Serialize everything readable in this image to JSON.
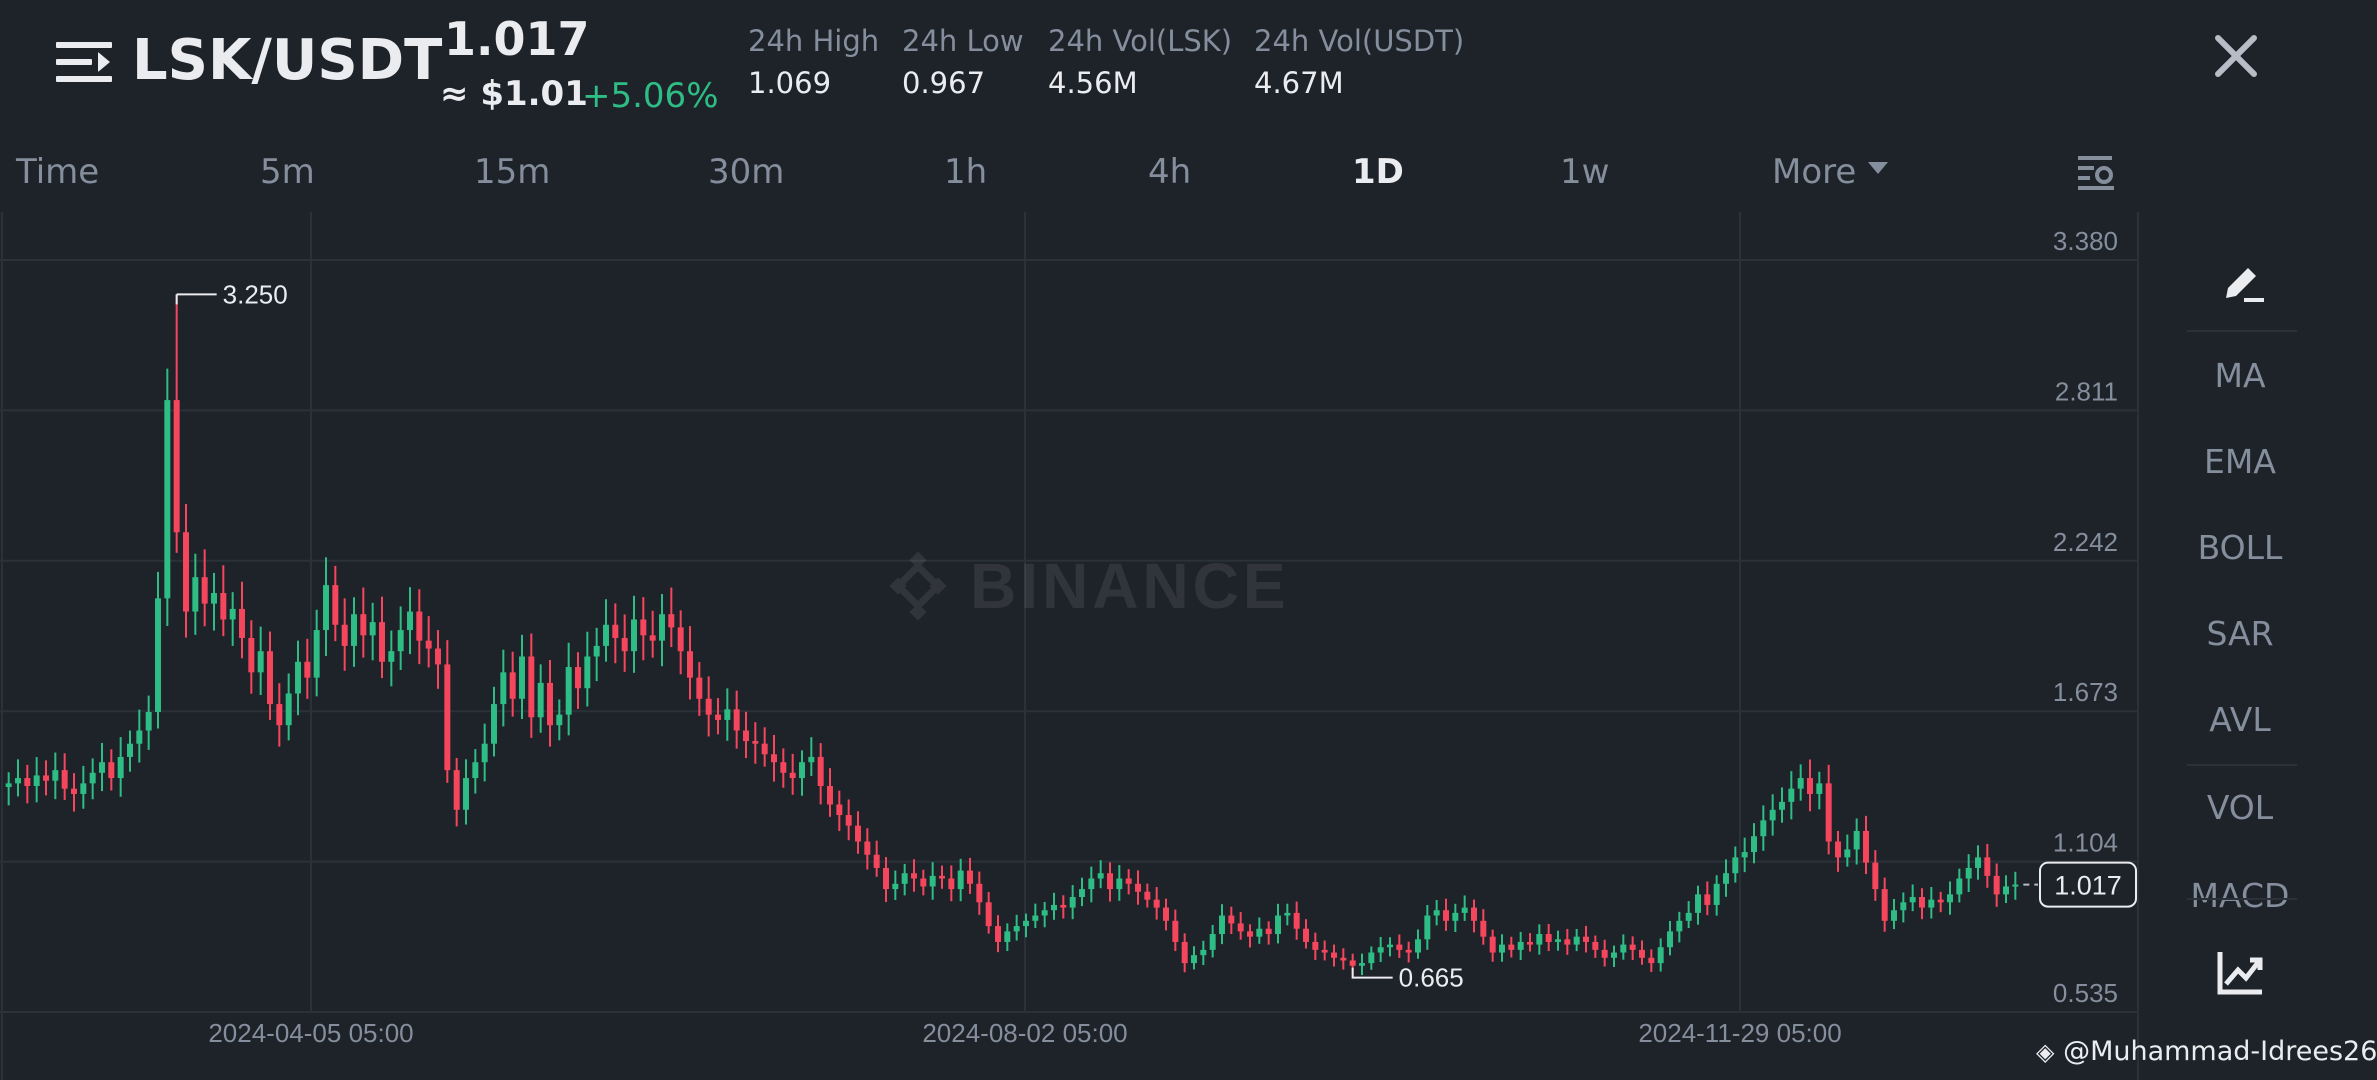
{
  "header": {
    "pair": "LSK/USDT",
    "last_price": "1.017",
    "usd_price": "≈ $1.01",
    "change_pct": "+5.06%",
    "stats": [
      {
        "label": "24h High",
        "value": "1.069"
      },
      {
        "label": "24h Low",
        "value": "0.967"
      },
      {
        "label": "24h Vol(LSK)",
        "value": "4.56M"
      },
      {
        "label": "24h Vol(USDT)",
        "value": "4.67M"
      }
    ],
    "close_icon": "close-icon",
    "menu_icon": "menu-icon"
  },
  "tabs": [
    "Time",
    "5m",
    "15m",
    "30m",
    "1h",
    "4h",
    "1D",
    "1w",
    "More"
  ],
  "active_tab": "1D",
  "indicators": [
    "MA",
    "EMA",
    "BOLL",
    "SAR",
    "AVL",
    "VOL",
    "MACD"
  ],
  "colors": {
    "up": "#2ebd85",
    "down": "#f6465d",
    "bg": "#1e2329",
    "grid": "#2b3139",
    "text_dim": "#848e9c"
  },
  "watermark": "BINANCE",
  "credit": "@Muhammad-Idrees26",
  "chart_data": {
    "type": "candlestick",
    "y_ticks": [
      "3.380",
      "2.811",
      "2.242",
      "1.673",
      "1.104",
      "0.535"
    ],
    "ylim": [
      0.535,
      3.38
    ],
    "x_ticks": [
      "2024-04-05 05:00",
      "2024-08-02 05:00",
      "2024-11-29 05:00"
    ],
    "high_marker": "3.250",
    "low_marker": "0.665",
    "current_price": "1.017",
    "close": [
      1.4,
      1.42,
      1.39,
      1.43,
      1.41,
      1.45,
      1.38,
      1.36,
      1.4,
      1.44,
      1.48,
      1.42,
      1.5,
      1.55,
      1.6,
      1.67,
      2.1,
      2.85,
      2.35,
      2.05,
      2.18,
      2.08,
      2.12,
      2.02,
      2.06,
      1.95,
      1.82,
      1.9,
      1.7,
      1.62,
      1.74,
      1.86,
      1.8,
      1.98,
      2.15,
      2.0,
      1.92,
      2.04,
      1.96,
      2.01,
      1.86,
      1.9,
      1.98,
      2.05,
      1.94,
      1.91,
      1.85,
      1.45,
      1.3,
      1.42,
      1.48,
      1.55,
      1.7,
      1.82,
      1.72,
      1.88,
      1.65,
      1.78,
      1.62,
      1.66,
      1.84,
      1.76,
      1.88,
      1.92,
      2.0,
      1.95,
      1.9,
      2.02,
      1.96,
      1.94,
      2.04,
      1.99,
      1.9,
      1.8,
      1.72,
      1.66,
      1.64,
      1.68,
      1.6,
      1.56,
      1.55,
      1.51,
      1.48,
      1.44,
      1.42,
      1.48,
      1.5,
      1.39,
      1.32,
      1.28,
      1.24,
      1.18,
      1.13,
      1.08,
      1.0,
      1.02,
      1.06,
      1.04,
      1.01,
      1.05,
      1.04,
      1.0,
      1.07,
      1.02,
      0.95,
      0.86,
      0.8,
      0.84,
      0.86,
      0.88,
      0.9,
      0.92,
      0.94,
      0.93,
      0.97,
      1.0,
      1.04,
      1.06,
      1.0,
      1.04,
      1.02,
      0.99,
      0.96,
      0.93,
      0.88,
      0.8,
      0.72,
      0.75,
      0.77,
      0.83,
      0.9,
      0.87,
      0.84,
      0.82,
      0.85,
      0.83,
      0.9,
      0.91,
      0.85,
      0.8,
      0.77,
      0.76,
      0.74,
      0.73,
      0.71,
      0.72,
      0.76,
      0.78,
      0.79,
      0.77,
      0.76,
      0.81,
      0.9,
      0.92,
      0.88,
      0.91,
      0.93,
      0.88,
      0.82,
      0.76,
      0.79,
      0.77,
      0.8,
      0.79,
      0.83,
      0.8,
      0.81,
      0.79,
      0.82,
      0.8,
      0.77,
      0.74,
      0.76,
      0.79,
      0.77,
      0.74,
      0.72,
      0.78,
      0.84,
      0.88,
      0.91,
      0.98,
      0.94,
      1.02,
      1.06,
      1.12,
      1.14,
      1.2,
      1.26,
      1.3,
      1.33,
      1.38,
      1.42,
      1.36,
      1.4,
      1.18,
      1.12,
      1.15,
      1.22,
      1.1,
      1.0,
      0.88,
      0.92,
      0.95,
      0.97,
      0.93,
      0.96,
      0.95,
      0.98,
      1.04,
      1.08,
      1.12,
      1.05,
      0.98,
      1.01,
      1.017
    ]
  }
}
